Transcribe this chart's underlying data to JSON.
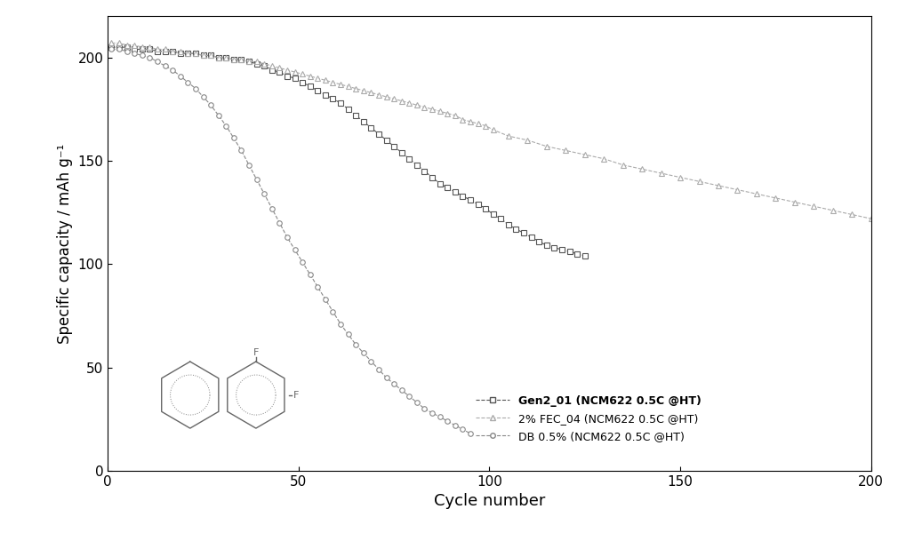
{
  "title": "",
  "xlabel": "Cycle number",
  "ylabel": "Specific capacity / mAh g⁻¹",
  "xlim": [
    0,
    200
  ],
  "ylim": [
    0,
    220
  ],
  "xticks": [
    0,
    50,
    100,
    150,
    200
  ],
  "yticks": [
    0,
    50,
    100,
    150,
    200
  ],
  "background_color": "#ffffff",
  "legend_labels": [
    "Gen2_01 (NCM622 0.5C @HT)",
    "2% FEC_04 (NCM622 0.5C @HT)",
    "DB 0.5% (NCM622 0.5C @HT)"
  ],
  "series": {
    "gen2": {
      "color": "#555555",
      "marker": "s",
      "markersize": 4,
      "linewidth": 0.8,
      "linestyle": "--",
      "x": [
        1,
        3,
        5,
        7,
        9,
        11,
        13,
        15,
        17,
        19,
        21,
        23,
        25,
        27,
        29,
        31,
        33,
        35,
        37,
        39,
        41,
        43,
        45,
        47,
        49,
        51,
        53,
        55,
        57,
        59,
        61,
        63,
        65,
        67,
        69,
        71,
        73,
        75,
        77,
        79,
        81,
        83,
        85,
        87,
        89,
        91,
        93,
        95,
        97,
        99,
        101,
        103,
        105,
        107,
        109,
        111,
        113,
        115,
        117,
        119,
        121,
        123,
        125
      ],
      "y": [
        205,
        205,
        205,
        204,
        204,
        204,
        203,
        203,
        203,
        202,
        202,
        202,
        201,
        201,
        200,
        200,
        199,
        199,
        198,
        197,
        196,
        194,
        193,
        191,
        190,
        188,
        186,
        184,
        182,
        180,
        178,
        175,
        172,
        169,
        166,
        163,
        160,
        157,
        154,
        151,
        148,
        145,
        142,
        139,
        137,
        135,
        133,
        131,
        129,
        127,
        124,
        122,
        119,
        117,
        115,
        113,
        111,
        109,
        108,
        107,
        106,
        105,
        104
      ]
    },
    "fec": {
      "color": "#aaaaaa",
      "marker": "^",
      "markersize": 4,
      "linewidth": 0.8,
      "linestyle": "--",
      "x": [
        1,
        3,
        5,
        7,
        9,
        11,
        13,
        15,
        17,
        19,
        21,
        23,
        25,
        27,
        29,
        31,
        33,
        35,
        37,
        39,
        41,
        43,
        45,
        47,
        49,
        51,
        53,
        55,
        57,
        59,
        61,
        63,
        65,
        67,
        69,
        71,
        73,
        75,
        77,
        79,
        81,
        83,
        85,
        87,
        89,
        91,
        93,
        95,
        97,
        99,
        101,
        105,
        110,
        115,
        120,
        125,
        130,
        135,
        140,
        145,
        150,
        155,
        160,
        165,
        170,
        175,
        180,
        185,
        190,
        195,
        200
      ],
      "y": [
        207,
        207,
        206,
        206,
        205,
        205,
        204,
        204,
        203,
        203,
        202,
        202,
        201,
        201,
        200,
        200,
        199,
        199,
        198,
        198,
        197,
        196,
        195,
        194,
        193,
        192,
        191,
        190,
        189,
        188,
        187,
        186,
        185,
        184,
        183,
        182,
        181,
        180,
        179,
        178,
        177,
        176,
        175,
        174,
        173,
        172,
        170,
        169,
        168,
        167,
        165,
        162,
        160,
        157,
        155,
        153,
        151,
        148,
        146,
        144,
        142,
        140,
        138,
        136,
        134,
        132,
        130,
        128,
        126,
        124,
        122
      ]
    },
    "db": {
      "color": "#888888",
      "marker": "o",
      "markersize": 4,
      "linewidth": 0.8,
      "linestyle": "--",
      "x": [
        1,
        3,
        5,
        7,
        9,
        11,
        13,
        15,
        17,
        19,
        21,
        23,
        25,
        27,
        29,
        31,
        33,
        35,
        37,
        39,
        41,
        43,
        45,
        47,
        49,
        51,
        53,
        55,
        57,
        59,
        61,
        63,
        65,
        67,
        69,
        71,
        73,
        75,
        77,
        79,
        81,
        83,
        85,
        87,
        89,
        91,
        93,
        95
      ],
      "y": [
        204,
        204,
        203,
        202,
        201,
        200,
        198,
        196,
        194,
        191,
        188,
        185,
        181,
        177,
        172,
        167,
        161,
        155,
        148,
        141,
        134,
        127,
        120,
        113,
        107,
        101,
        95,
        89,
        83,
        77,
        71,
        66,
        61,
        57,
        53,
        49,
        45,
        42,
        39,
        36,
        33,
        30,
        28,
        26,
        24,
        22,
        20,
        18
      ]
    }
  },
  "struct_color": "#666666",
  "struct_lw": 1.0
}
